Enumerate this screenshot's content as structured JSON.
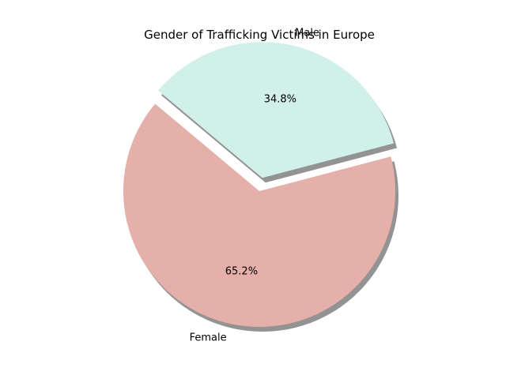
{
  "chart_data": {
    "type": "pie",
    "title": "Gender of Trafficking Victims in Europe",
    "slices": [
      {
        "label": "Female",
        "value": 65.2,
        "pct_label": "65.2%",
        "color": "#e5b0aa",
        "explode": 0.0
      },
      {
        "label": "Male",
        "value": 34.8,
        "pct_label": "34.8%",
        "color": "#d1f0ea",
        "explode": 0.1
      }
    ],
    "start_angle_deg": 140,
    "shadow": true,
    "shadow_color": "#808080"
  }
}
